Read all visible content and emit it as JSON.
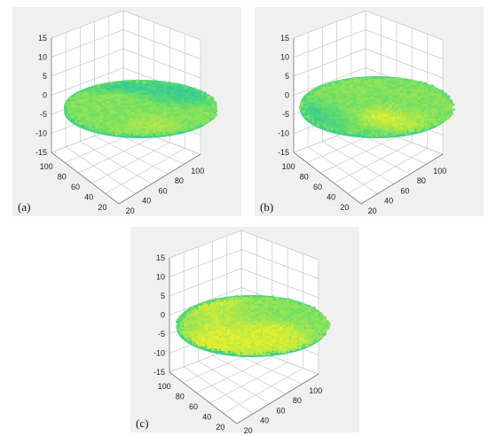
{
  "chart_data": [
    {
      "panel_label": "(a)",
      "type": "surface3d",
      "z_ticks": [
        "15",
        "10",
        "5",
        "0",
        "-5",
        "-10",
        "-15"
      ],
      "y_ticks": [
        "100",
        "80",
        "60",
        "40",
        "20"
      ],
      "x_ticks": [
        "20",
        "40",
        "60",
        "80",
        "100"
      ],
      "zlim": [
        -15,
        15
      ],
      "xlim": [
        20,
        100
      ],
      "ylim": [
        20,
        100
      ],
      "grid": true,
      "colormap": [
        "#31c89a",
        "#5fdc6c",
        "#a3e651",
        "#e6ef2c"
      ]
    },
    {
      "panel_label": "(b)",
      "type": "surface3d",
      "z_ticks": [
        "15",
        "10",
        "5",
        "0",
        "-5",
        "-10",
        "-15"
      ],
      "y_ticks": [
        "100",
        "80",
        "60",
        "40",
        "20"
      ],
      "x_ticks": [
        "20",
        "40",
        "60",
        "80",
        "100"
      ],
      "zlim": [
        -15,
        15
      ],
      "xlim": [
        20,
        100
      ],
      "ylim": [
        20,
        100
      ],
      "grid": true,
      "colormap": [
        "#31c89a",
        "#5fdc6c",
        "#a3e651",
        "#e6ef2c"
      ]
    },
    {
      "panel_label": "(c)",
      "type": "surface3d",
      "z_ticks": [
        "15",
        "10",
        "5",
        "0",
        "-5",
        "-10",
        "-15"
      ],
      "y_ticks": [
        "100",
        "80",
        "60",
        "40",
        "20"
      ],
      "x_ticks": [
        "20",
        "40",
        "60",
        "80",
        "100"
      ],
      "zlim": [
        -15,
        15
      ],
      "xlim": [
        20,
        100
      ],
      "ylim": [
        20,
        100
      ],
      "grid": true,
      "colormap": [
        "#31c89a",
        "#5fdc6c",
        "#a3e651",
        "#e6ef2c"
      ]
    }
  ]
}
